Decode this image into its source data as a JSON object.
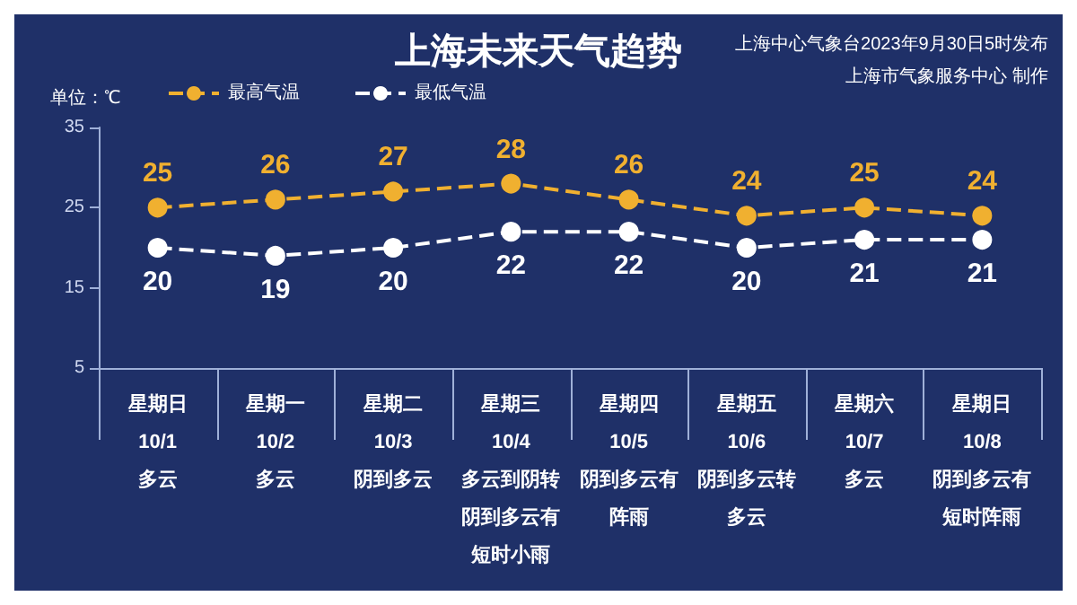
{
  "chart_data": {
    "type": "line",
    "title": "上海未来天气趋势",
    "ylabel": "单位：℃",
    "annotations": [
      "上海中心气象台2023年9月30日5时发布",
      "上海市气象服务中心 制作"
    ],
    "categories": [
      "星期日\n10/1\n多云",
      "星期一\n10/2\n多云",
      "星期二\n10/3\n阴到多云",
      "星期三\n10/4\n多云到阴转阴到多云有短时小雨",
      "星期四\n10/5\n阴到多云有阵雨",
      "星期五\n10/6\n阴到多云转多云",
      "星期六\n10/7\n多云",
      "星期日\n10/8\n阴到多云有短时阵雨"
    ],
    "series": [
      {
        "name": "最高气温",
        "color": "#f0b030",
        "values": [
          25,
          26,
          27,
          28,
          26,
          24,
          25,
          24
        ]
      },
      {
        "name": "最低气温",
        "color": "#ffffff",
        "values": [
          20,
          19,
          20,
          22,
          22,
          20,
          21,
          21
        ]
      }
    ],
    "ylim": [
      5,
      35
    ],
    "yticks": [
      5,
      15,
      25,
      35
    ],
    "grid": false,
    "legend": "top left",
    "marker": "circle",
    "line_style": "dashed",
    "data_labels": true
  }
}
